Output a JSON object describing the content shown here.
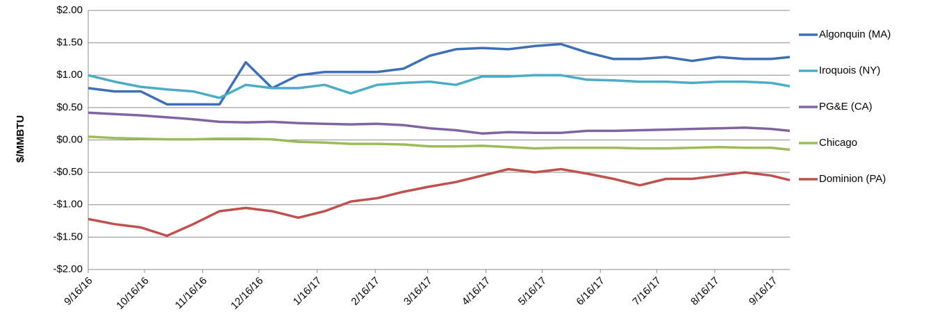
{
  "chart_data": {
    "type": "line",
    "y_label": "$/MMBTU",
    "x": [
      "9/16/16",
      "9/30/16",
      "10/14/16",
      "10/28/16",
      "11/11/16",
      "11/25/16",
      "12/9/16",
      "12/23/16",
      "1/6/17",
      "1/20/17",
      "2/3/17",
      "2/17/17",
      "3/3/17",
      "3/17/17",
      "3/31/17",
      "4/14/17",
      "4/28/17",
      "5/12/17",
      "5/26/17",
      "6/9/17",
      "6/23/17",
      "7/7/17",
      "7/21/17",
      "8/4/17",
      "8/18/17",
      "9/1/17",
      "9/15/17",
      "9/25/17"
    ],
    "xlim": [
      "9/16/16",
      "9/25/17"
    ],
    "xticks": [
      "9/16/16",
      "10/16/16",
      "11/16/16",
      "12/16/16",
      "1/16/17",
      "2/16/17",
      "3/16/17",
      "4/16/17",
      "5/16/17",
      "6/16/17",
      "7/16/17",
      "8/16/17",
      "9/16/17"
    ],
    "ylim": [
      -2,
      2
    ],
    "yticks": [
      {
        "value": -2,
        "label": "-$2.00"
      },
      {
        "value": -1.5,
        "label": "-$1.50"
      },
      {
        "value": -1,
        "label": "-$1.00"
      },
      {
        "value": -0.5,
        "label": "-$0.50"
      },
      {
        "value": 0,
        "label": "$0.00"
      },
      {
        "value": 0.5,
        "label": "$0.50"
      },
      {
        "value": 1,
        "label": "$1.00"
      },
      {
        "value": 1.5,
        "label": "$1.50"
      },
      {
        "value": 2,
        "label": "$2.00"
      }
    ],
    "grid": true,
    "legend": "right",
    "series": [
      {
        "name": "Algonquin (MA)",
        "color": "#3d6fb6",
        "values": [
          0.8,
          0.75,
          0.75,
          0.55,
          0.55,
          0.55,
          1.2,
          0.8,
          1.0,
          1.05,
          1.05,
          1.05,
          1.1,
          1.3,
          1.4,
          1.42,
          1.4,
          1.45,
          1.48,
          1.35,
          1.25,
          1.25,
          1.28,
          1.22,
          1.28,
          1.25,
          1.25,
          1.28
        ]
      },
      {
        "name": "Iroquois (NY)",
        "color": "#4bacc6",
        "values": [
          1.0,
          0.9,
          0.82,
          0.78,
          0.75,
          0.65,
          0.85,
          0.8,
          0.8,
          0.85,
          0.72,
          0.85,
          0.88,
          0.9,
          0.85,
          0.98,
          0.98,
          1.0,
          1.0,
          0.93,
          0.92,
          0.9,
          0.9,
          0.88,
          0.9,
          0.9,
          0.88,
          0.83
        ]
      },
      {
        "name": "PG&E (CA)",
        "color": "#8064a2",
        "values": [
          0.42,
          0.4,
          0.38,
          0.35,
          0.32,
          0.28,
          0.27,
          0.28,
          0.26,
          0.25,
          0.24,
          0.25,
          0.23,
          0.18,
          0.15,
          0.1,
          0.12,
          0.11,
          0.11,
          0.14,
          0.14,
          0.15,
          0.16,
          0.17,
          0.18,
          0.19,
          0.17,
          0.14
        ]
      },
      {
        "name": "Chicago",
        "color": "#9bbb59",
        "values": [
          0.05,
          0.03,
          0.02,
          0.01,
          0.01,
          0.02,
          0.02,
          0.01,
          -0.03,
          -0.04,
          -0.06,
          -0.06,
          -0.07,
          -0.1,
          -0.1,
          -0.09,
          -0.11,
          -0.13,
          -0.12,
          -0.12,
          -0.12,
          -0.13,
          -0.13,
          -0.12,
          -0.11,
          -0.12,
          -0.12,
          -0.15
        ]
      },
      {
        "name": "Dominion (PA)",
        "color": "#c0504d",
        "values": [
          -1.22,
          -1.3,
          -1.35,
          -1.48,
          -1.3,
          -1.1,
          -1.05,
          -1.1,
          -1.2,
          -1.1,
          -0.95,
          -0.9,
          -0.8,
          -0.72,
          -0.65,
          -0.55,
          -0.45,
          -0.5,
          -0.45,
          -0.52,
          -0.6,
          -0.7,
          -0.6,
          -0.6,
          -0.55,
          -0.5,
          -0.55,
          -0.62
        ]
      }
    ]
  }
}
